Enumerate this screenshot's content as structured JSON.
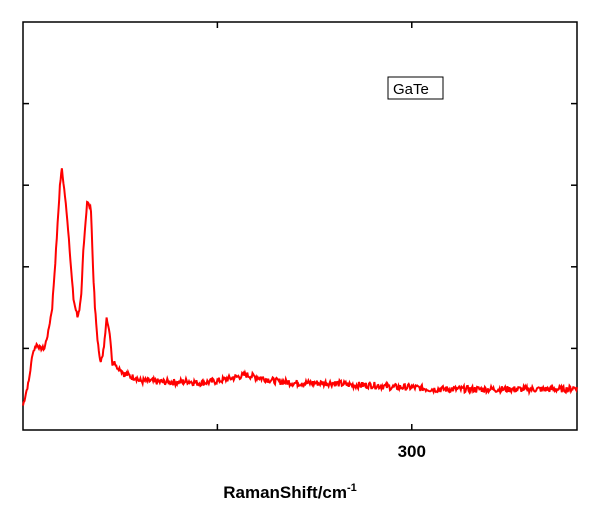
{
  "chart_data": {
    "type": "line",
    "title": "",
    "xlabel": "RamanShift/cm",
    "xlabel_superscript": "-1",
    "ylabel": "",
    "xlim": [
      100,
      385
    ],
    "ylim": [
      0,
      100
    ],
    "x_tick_values": [
      200,
      300,
      400
    ],
    "x_tick_labels": [
      "300"
    ],
    "x_tick_label_values": [
      300
    ],
    "y_tick_values": [
      20,
      40,
      60,
      80
    ],
    "grid": false,
    "legend_placement": "top-right",
    "series": [
      {
        "name": "GaTe",
        "color": "#ff0000",
        "x": [
          100,
          103,
          105,
          107,
          109,
          111,
          113,
          115,
          117,
          119,
          120,
          122,
          124,
          126,
          128,
          129,
          130,
          131,
          133,
          135,
          136,
          137,
          138,
          139,
          140,
          141,
          142,
          143,
          145,
          146,
          147,
          148,
          150,
          152,
          154,
          156,
          158,
          160,
          165,
          170,
          175,
          180,
          185,
          190,
          200,
          210,
          215,
          220,
          225,
          230,
          240,
          250,
          260,
          270,
          280,
          290,
          300,
          310,
          320,
          330,
          340,
          350,
          360,
          370,
          380,
          385
        ],
        "y": [
          6,
          12,
          19,
          21,
          20,
          20,
          24,
          30,
          44,
          60,
          64,
          56,
          44,
          32,
          28,
          29,
          33,
          44,
          56,
          54,
          40,
          30,
          24,
          19,
          17,
          18,
          22,
          28,
          22,
          16,
          17,
          15.5,
          15,
          13.8,
          13.5,
          13,
          13,
          12,
          12,
          11.8,
          11.8,
          11.7,
          12,
          11.5,
          12,
          13,
          13.5,
          13,
          12.5,
          12,
          11.5,
          11.5,
          11.5,
          11,
          11,
          10.5,
          10.5,
          10,
          10,
          10,
          10,
          10,
          10,
          10,
          10,
          10.5
        ]
      }
    ]
  }
}
